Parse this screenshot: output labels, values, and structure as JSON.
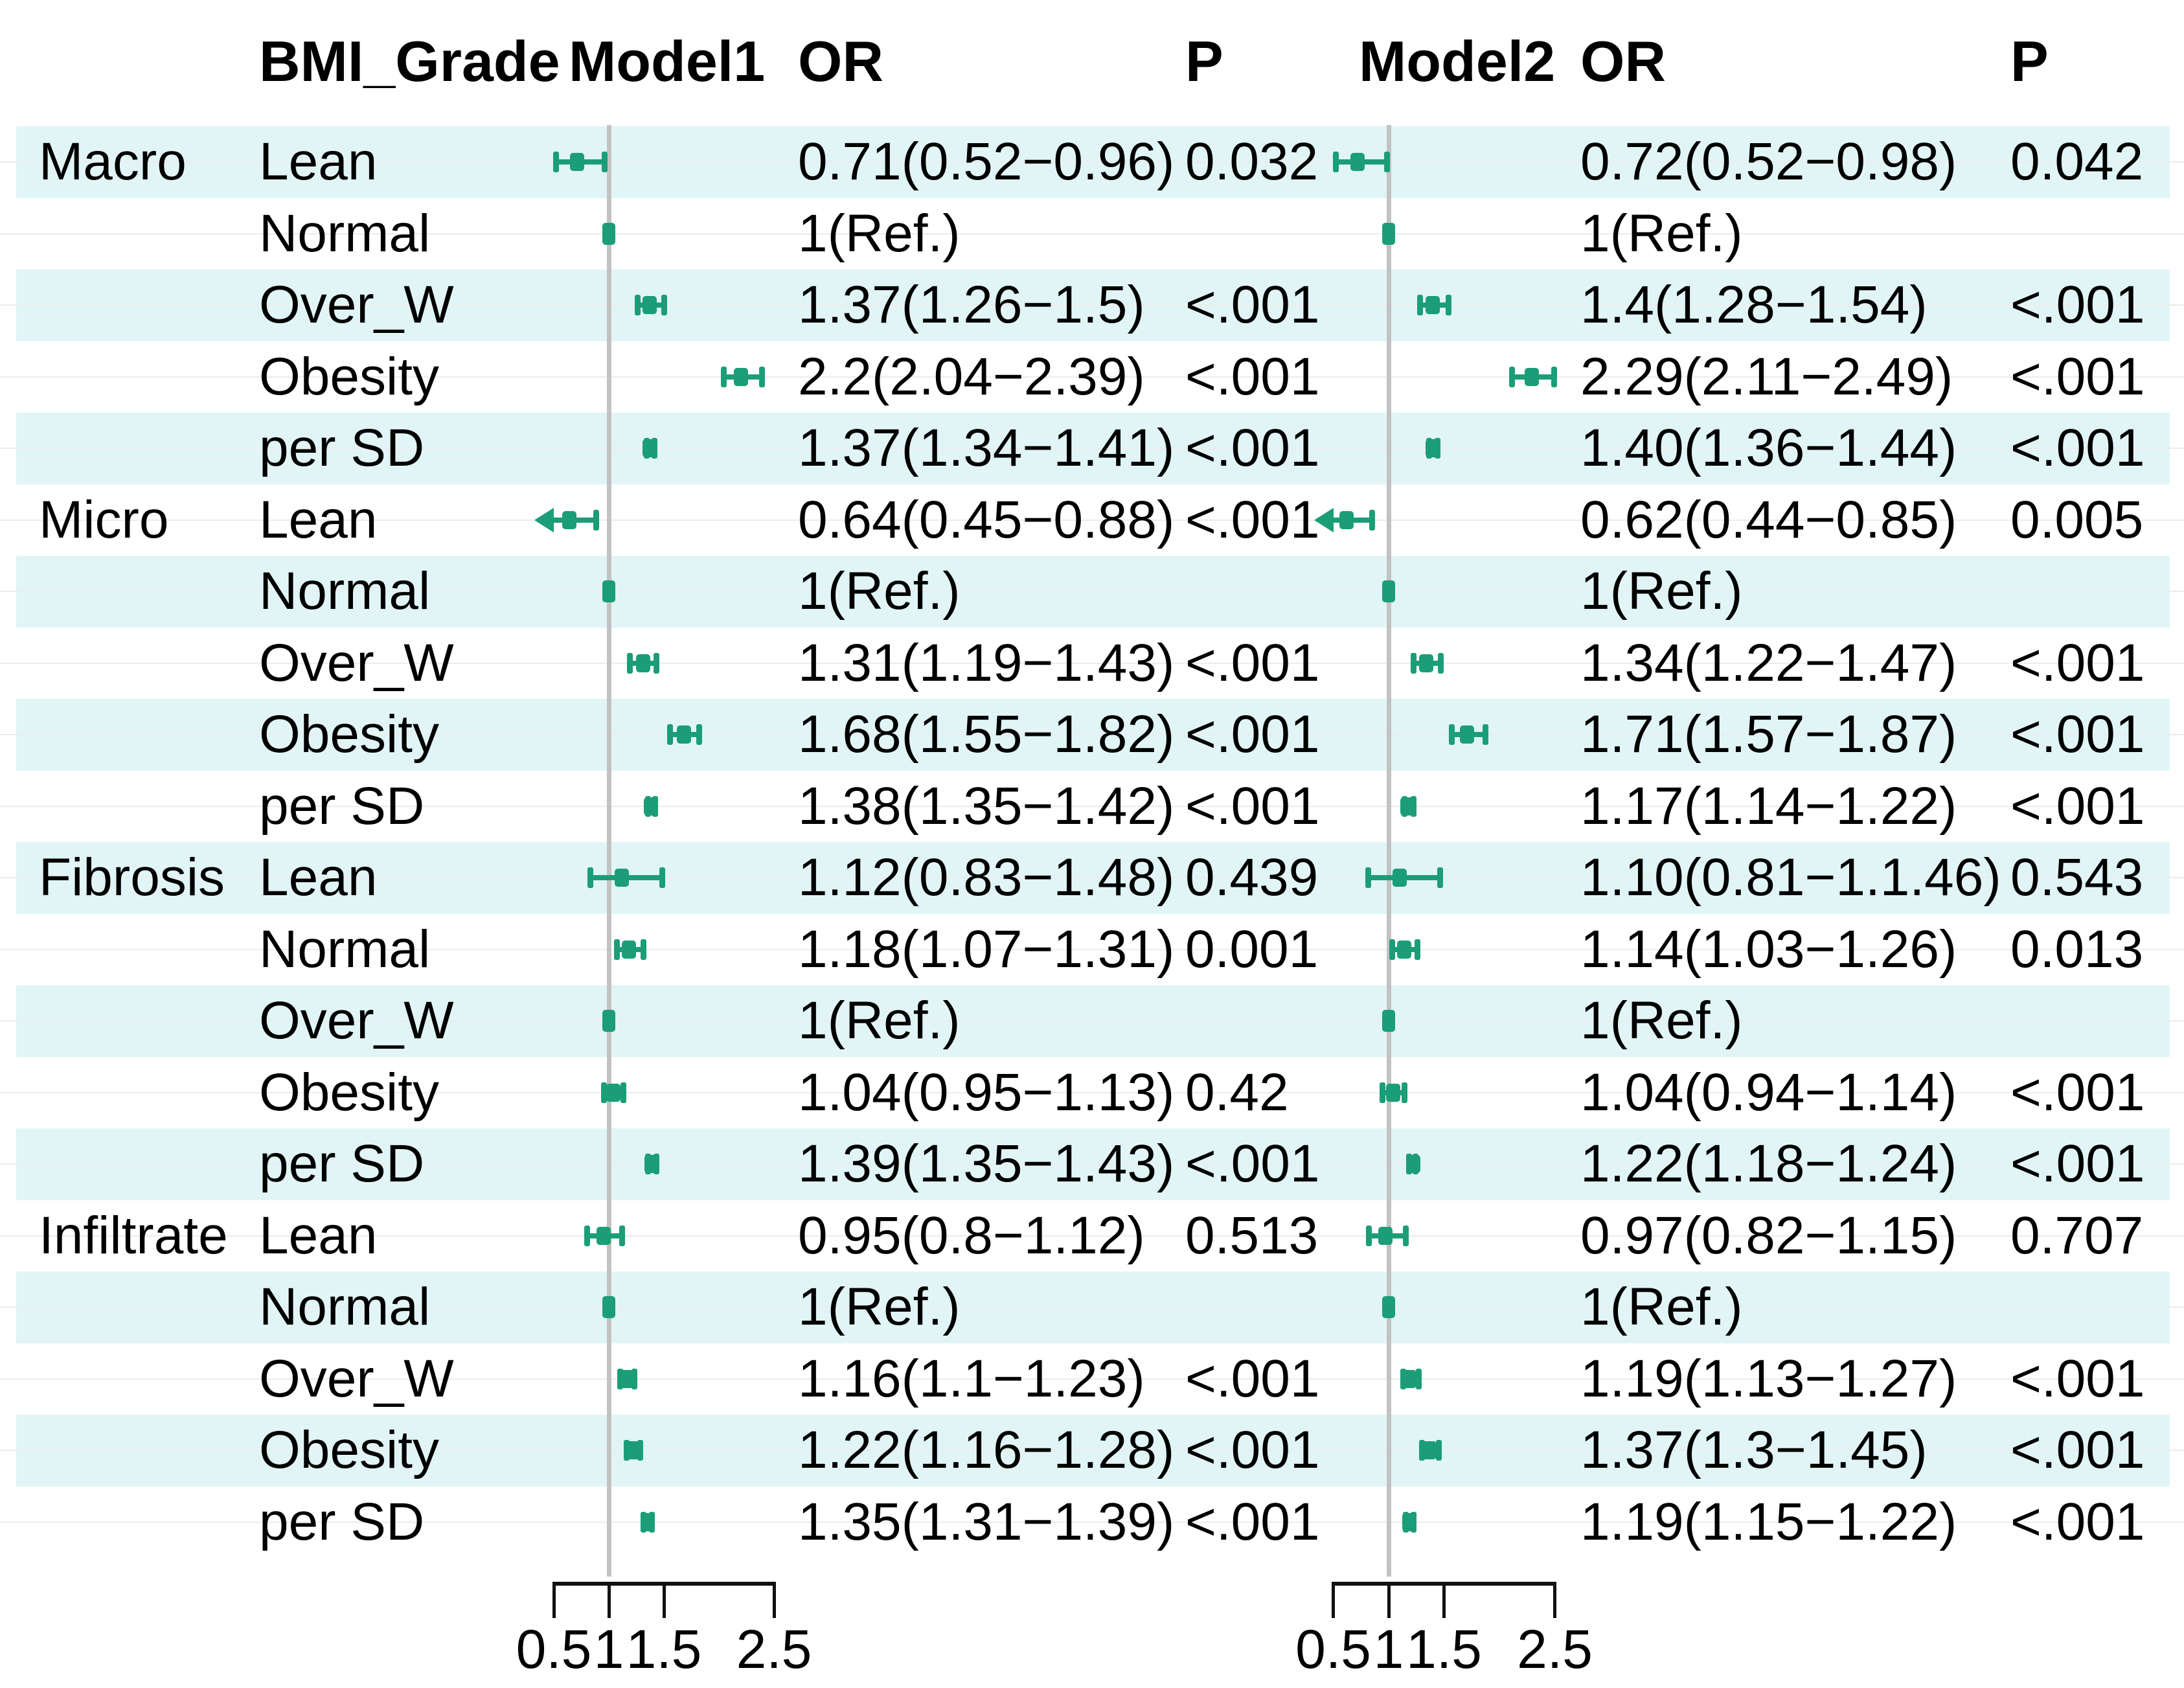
{
  "header": {
    "bmi_grade": "BMI_Grade",
    "model1": "Model1",
    "or1": "OR",
    "p1": "P",
    "model2": "Model2",
    "or2": "OR",
    "p2": "P"
  },
  "colors": {
    "marker_green": "#1B9E77",
    "row_band_cyan": "#E1F5F6",
    "reference_line_gray": "#C2C2C2",
    "axis_black": "#111111"
  },
  "chart_data": {
    "type": "forest",
    "title": "",
    "models": [
      "Model1",
      "Model2"
    ],
    "or_axis": {
      "min": 0.5,
      "max": 2.5,
      "ticks": [
        0.5,
        1,
        1.5,
        2.5
      ],
      "tick_labels": [
        "0.5",
        "1",
        "1.5",
        "2.5"
      ],
      "reference": 1,
      "scale": "linear"
    },
    "groups": [
      "Macro",
      "Micro",
      "Fibrosis",
      "Infiltrate"
    ],
    "grades": [
      "Lean",
      "Normal",
      "Over_W",
      "Obesity",
      "per SD"
    ],
    "rows": [
      {
        "group": "Macro",
        "grade": "Lean",
        "m1": {
          "or": "0.71(0.52−0.96)",
          "p": "0.032",
          "est": 0.71,
          "lo": 0.52,
          "hi": 0.96
        },
        "m2": {
          "or": "0.72(0.52−0.98)",
          "p": "0.042",
          "est": 0.72,
          "lo": 0.52,
          "hi": 0.98
        }
      },
      {
        "group": "",
        "grade": "Normal",
        "m1": {
          "or": "1(Ref.)",
          "p": "",
          "est": 1,
          "lo": 1,
          "hi": 1,
          "ref": true
        },
        "m2": {
          "or": "1(Ref.)",
          "p": "",
          "est": 1,
          "lo": 1,
          "hi": 1,
          "ref": true
        }
      },
      {
        "group": "",
        "grade": "Over_W",
        "m1": {
          "or": "1.37(1.26−1.5)",
          "p": "<.001",
          "est": 1.37,
          "lo": 1.26,
          "hi": 1.5
        },
        "m2": {
          "or": "1.4(1.28−1.54)",
          "p": "<.001",
          "est": 1.4,
          "lo": 1.28,
          "hi": 1.54
        }
      },
      {
        "group": "",
        "grade": "Obesity",
        "m1": {
          "or": "2.2(2.04−2.39)",
          "p": "<.001",
          "est": 2.2,
          "lo": 2.04,
          "hi": 2.39
        },
        "m2": {
          "or": "2.29(2.11−2.49)",
          "p": "<.001",
          "est": 2.29,
          "lo": 2.11,
          "hi": 2.49
        }
      },
      {
        "group": "",
        "grade": "per SD",
        "m1": {
          "or": "1.37(1.34−1.41)",
          "p": "<.001",
          "est": 1.37,
          "lo": 1.34,
          "hi": 1.41
        },
        "m2": {
          "or": "1.40(1.36−1.44)",
          "p": "<.001",
          "est": 1.4,
          "lo": 1.36,
          "hi": 1.44
        }
      },
      {
        "group": "Micro",
        "grade": "Lean",
        "m1": {
          "or": "0.64(0.45−0.88)",
          "p": "<.001",
          "est": 0.64,
          "lo": 0.45,
          "hi": 0.88
        },
        "m2": {
          "or": "0.62(0.44−0.85)",
          "p": "0.005",
          "est": 0.62,
          "lo": 0.44,
          "hi": 0.85
        }
      },
      {
        "group": "",
        "grade": "Normal",
        "m1": {
          "or": "1(Ref.)",
          "p": "",
          "est": 1,
          "lo": 1,
          "hi": 1,
          "ref": true
        },
        "m2": {
          "or": "1(Ref.)",
          "p": "",
          "est": 1,
          "lo": 1,
          "hi": 1,
          "ref": true
        }
      },
      {
        "group": "",
        "grade": "Over_W",
        "m1": {
          "or": "1.31(1.19−1.43)",
          "p": "<.001",
          "est": 1.31,
          "lo": 1.19,
          "hi": 1.43
        },
        "m2": {
          "or": "1.34(1.22−1.47)",
          "p": "<.001",
          "est": 1.34,
          "lo": 1.22,
          "hi": 1.47
        }
      },
      {
        "group": "",
        "grade": "Obesity",
        "m1": {
          "or": "1.68(1.55−1.82)",
          "p": "<.001",
          "est": 1.68,
          "lo": 1.55,
          "hi": 1.82
        },
        "m2": {
          "or": "1.71(1.57−1.87)",
          "p": "<.001",
          "est": 1.71,
          "lo": 1.57,
          "hi": 1.87
        }
      },
      {
        "group": "",
        "grade": "per SD",
        "m1": {
          "or": "1.38(1.35−1.42)",
          "p": "<.001",
          "est": 1.38,
          "lo": 1.35,
          "hi": 1.42
        },
        "m2": {
          "or": "1.17(1.14−1.22)",
          "p": "<.001",
          "est": 1.17,
          "lo": 1.14,
          "hi": 1.22
        }
      },
      {
        "group": "Fibrosis",
        "grade": "Lean",
        "m1": {
          "or": "1.12(0.83−1.48)",
          "p": "0.439",
          "est": 1.12,
          "lo": 0.83,
          "hi": 1.48
        },
        "m2": {
          "or": "1.10(0.81−1.1.46)",
          "p": "0.543",
          "est": 1.1,
          "lo": 0.81,
          "hi": 1.46
        }
      },
      {
        "group": "",
        "grade": "Normal",
        "m1": {
          "or": "1.18(1.07−1.31)",
          "p": "0.001",
          "est": 1.18,
          "lo": 1.07,
          "hi": 1.31
        },
        "m2": {
          "or": "1.14(1.03−1.26)",
          "p": "0.013",
          "est": 1.14,
          "lo": 1.03,
          "hi": 1.26
        }
      },
      {
        "group": "",
        "grade": "Over_W",
        "m1": {
          "or": "1(Ref.)",
          "p": "",
          "est": 1,
          "lo": 1,
          "hi": 1,
          "ref": true
        },
        "m2": {
          "or": "1(Ref.)",
          "p": "",
          "est": 1,
          "lo": 1,
          "hi": 1,
          "ref": true
        }
      },
      {
        "group": "",
        "grade": "Obesity",
        "m1": {
          "or": "1.04(0.95−1.13)",
          "p": "0.42",
          "est": 1.04,
          "lo": 0.95,
          "hi": 1.13
        },
        "m2": {
          "or": "1.04(0.94−1.14)",
          "p": "<.001",
          "est": 1.04,
          "lo": 0.94,
          "hi": 1.14
        }
      },
      {
        "group": "",
        "grade": "per SD",
        "m1": {
          "or": "1.39(1.35−1.43)",
          "p": "<.001",
          "est": 1.39,
          "lo": 1.35,
          "hi": 1.43
        },
        "m2": {
          "or": "1.22(1.18−1.24)",
          "p": "<.001",
          "est": 1.22,
          "lo": 1.18,
          "hi": 1.24
        }
      },
      {
        "group": "Infiltrate",
        "grade": "Lean",
        "m1": {
          "or": "0.95(0.8−1.12)",
          "p": "0.513",
          "est": 0.95,
          "lo": 0.8,
          "hi": 1.12
        },
        "m2": {
          "or": "0.97(0.82−1.15)",
          "p": "0.707",
          "est": 0.97,
          "lo": 0.82,
          "hi": 1.15
        }
      },
      {
        "group": "",
        "grade": "Normal",
        "m1": {
          "or": "1(Ref.)",
          "p": "",
          "est": 1,
          "lo": 1,
          "hi": 1,
          "ref": true
        },
        "m2": {
          "or": "1(Ref.)",
          "p": "",
          "est": 1,
          "lo": 1,
          "hi": 1,
          "ref": true
        }
      },
      {
        "group": "",
        "grade": "Over_W",
        "m1": {
          "or": "1.16(1.1−1.23)",
          "p": "<.001",
          "est": 1.16,
          "lo": 1.1,
          "hi": 1.23
        },
        "m2": {
          "or": "1.19(1.13−1.27)",
          "p": "<.001",
          "est": 1.19,
          "lo": 1.13,
          "hi": 1.27
        }
      },
      {
        "group": "",
        "grade": "Obesity",
        "m1": {
          "or": "1.22(1.16−1.28)",
          "p": "<.001",
          "est": 1.22,
          "lo": 1.16,
          "hi": 1.28
        },
        "m2": {
          "or": "1.37(1.3−1.45)",
          "p": "<.001",
          "est": 1.37,
          "lo": 1.3,
          "hi": 1.45
        }
      },
      {
        "group": "",
        "grade": "per SD",
        "m1": {
          "or": "1.35(1.31−1.39)",
          "p": "<.001",
          "est": 1.35,
          "lo": 1.31,
          "hi": 1.39
        },
        "m2": {
          "or": "1.19(1.15−1.22)",
          "p": "<.001",
          "est": 1.19,
          "lo": 1.15,
          "hi": 1.22
        }
      }
    ]
  }
}
